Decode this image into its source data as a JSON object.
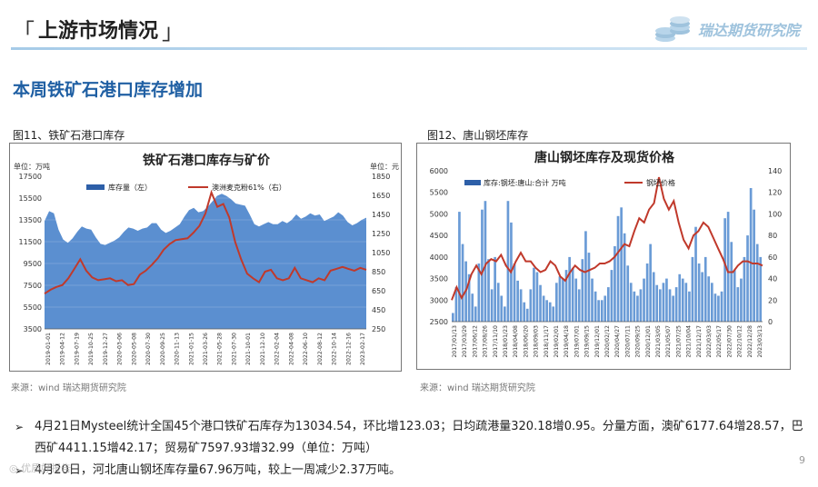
{
  "header": {
    "open_bracket": "「",
    "title": "上游市场情况",
    "close_bracket": "」",
    "logo_text": "瑞达期货研究院"
  },
  "subtitle": "本周铁矿石港口库存增加",
  "page_number": "9",
  "watermark": "◎ 优质好报告",
  "bullets": [
    "4月21日Mysteel统计全国45个港口铁矿石库存为13034.54，环比增123.03；日均疏港量320.18增0.95。分量方面，澳矿6177.64增28.57，巴西矿4411.15增42.17；贸易矿7597.93增32.99（单位：万吨）",
    "4月20日，河北唐山钢坯库存量67.96万吨，较上一周减少2.37万吨。"
  ],
  "colors": {
    "area_fill": "#5b8fd0",
    "price_line": "#c0392b",
    "bar_fill": "#6a9bd6",
    "title_blue": "#1f5fa3"
  },
  "chart_data": [
    {
      "type": "area",
      "caption": "图11、铁矿石港口库存",
      "title": "铁矿石港口库存与矿价",
      "left_unit": "单位：万吨",
      "right_unit": "单位：元",
      "source": "来源：wind    瑞达期货研究院",
      "x_ticks": [
        "2019-01-01",
        "2019-04-12",
        "2019-07-19",
        "2019-10-25",
        "2019-12-27",
        "2020-03-06",
        "2020-05-08",
        "2020-07-30",
        "2020-09-25",
        "2020-11-13",
        "2021-01-15",
        "2021-03-26",
        "2021-05-28",
        "2021-07-30",
        "2021-10-01",
        "2021-12-10",
        "2022-02-04",
        "2022-04-08",
        "2022-06-10",
        "2022-08-12",
        "2022-10-14",
        "2022-12-16",
        "2023-02-17"
      ],
      "y_left_ticks": [
        "3500",
        "5500",
        "7500",
        "9500",
        "11500",
        "13500",
        "15500",
        "17500"
      ],
      "y_right_ticks": [
        "250",
        "450",
        "650",
        "850",
        "1050",
        "1250",
        "1450",
        "1650",
        "1850"
      ],
      "ylim_left": [
        3500,
        17500
      ],
      "ylim_right": [
        250,
        1850
      ],
      "series": [
        {
          "name": "库存量（左）",
          "axis": "left",
          "values": [
            13400,
            14300,
            14100,
            12600,
            11700,
            11400,
            11800,
            12400,
            12900,
            12700,
            12600,
            11900,
            11300,
            11200,
            11400,
            11600,
            11900,
            12400,
            12800,
            12700,
            12500,
            12700,
            12800,
            13200,
            13200,
            12600,
            12300,
            12500,
            12800,
            13100,
            13800,
            14400,
            14600,
            14200,
            14300,
            14700,
            15200,
            15700,
            15900,
            15700,
            15400,
            15000,
            14900,
            14800,
            14000,
            13100,
            12900,
            13100,
            13300,
            13100,
            13100,
            13400,
            13200,
            13500,
            14000,
            13600,
            13800,
            14100,
            13900,
            14000,
            13400,
            13600,
            13800,
            14200,
            13900,
            13300,
            13000,
            13200,
            13500,
            13700
          ]
        },
        {
          "name": "澳洲麦克粉61%（右）",
          "axis": "right",
          "values": [
            620,
            660,
            690,
            710,
            780,
            880,
            980,
            860,
            790,
            760,
            770,
            780,
            750,
            760,
            710,
            720,
            820,
            860,
            920,
            990,
            1080,
            1140,
            1180,
            1190,
            1200,
            1260,
            1330,
            1460,
            1680,
            1530,
            1560,
            1420,
            1160,
            980,
            830,
            780,
            740,
            850,
            870,
            780,
            760,
            780,
            890,
            780,
            760,
            740,
            780,
            760,
            860,
            880,
            900,
            880,
            860,
            890,
            870
          ]
        }
      ]
    },
    {
      "type": "bar",
      "caption": "图12、唐山钢坯库存",
      "title": "唐山钢坯库存及现货价格",
      "source": "来源：wind    瑞达期货研究院",
      "x_ticks": [
        "2017/01/13",
        "2017/03/29",
        "2017/06/12",
        "2017/08/26",
        "2017/11/10",
        "2018/01/23",
        "2018/04/08",
        "2018/06/20",
        "2018/09/03",
        "2018/11/17",
        "2019/02/01",
        "2019/04/18",
        "2019/07/01",
        "2019/09/15",
        "2019/12/01",
        "2020/02/12",
        "2020/04/27",
        "2020/07/11",
        "2020/09/25",
        "2020/12/01",
        "2021/03/05",
        "2021/05/07",
        "2021/07/25",
        "2021/10/04",
        "2021/12/17",
        "2022/03/03",
        "2022/05/17",
        "2022/07/30",
        "2022/10/12",
        "2022/12/28",
        "2023/03/13"
      ],
      "y_left_ticks": [
        "2500",
        "3000",
        "3500",
        "4000",
        "4500",
        "5000",
        "5500",
        "6000"
      ],
      "y_right_ticks": [
        "0",
        "20",
        "40",
        "60",
        "80",
        "100",
        "120",
        "140"
      ],
      "ylim_left": [
        2500,
        6000
      ],
      "ylim_right": [
        0,
        140
      ],
      "series": [
        {
          "name": "库存:钢坯:唐山:合计 万吨",
          "axis": "right",
          "values": [
            8,
            32,
            102,
            72,
            56,
            44,
            26,
            14,
            54,
            104,
            112,
            58,
            30,
            60,
            36,
            24,
            14,
            112,
            92,
            54,
            38,
            30,
            18,
            12,
            30,
            50,
            46,
            34,
            24,
            20,
            18,
            14,
            36,
            42,
            40,
            48,
            60,
            50,
            40,
            30,
            58,
            84,
            64,
            40,
            28,
            20,
            20,
            24,
            32,
            48,
            70,
            98,
            106,
            82,
            52,
            36,
            28,
            24,
            30,
            40,
            54,
            72,
            46,
            34,
            30,
            36,
            40,
            30,
            24,
            32,
            44,
            40,
            36,
            28,
            60,
            88,
            54,
            46,
            60,
            42,
            36,
            26,
            24,
            28,
            96,
            102,
            74,
            48,
            32,
            40,
            60,
            80,
            124,
            104,
            72,
            60
          ]
        },
        {
          "name": "钢坯价格",
          "axis": "left",
          "values": [
            3000,
            3300,
            3050,
            3250,
            3600,
            3800,
            3600,
            3850,
            3950,
            3900,
            4050,
            3800,
            3650,
            3900,
            4100,
            3900,
            3900,
            3750,
            3650,
            3700,
            3900,
            3800,
            3550,
            3450,
            3650,
            3800,
            3700,
            3650,
            3700,
            3750,
            3850,
            3850,
            3900,
            4000,
            4150,
            4300,
            4250,
            4600,
            4900,
            4800,
            5100,
            5250,
            5850,
            5350,
            5100,
            5300,
            4800,
            4400,
            4200,
            4500,
            4600,
            4800,
            4700,
            4450,
            4200,
            3950,
            3650,
            3650,
            3800,
            3900,
            3900,
            3850,
            3850,
            3800
          ]
        }
      ]
    }
  ]
}
